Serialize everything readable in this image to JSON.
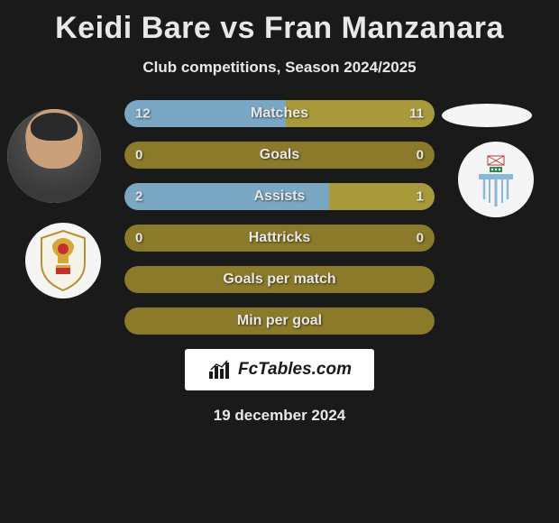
{
  "title": "Keidi Bare vs Fran Manzanara",
  "subtitle": "Club competitions, Season 2024/2025",
  "date": "19 december 2024",
  "fctables_label": "FcTables.com",
  "colors": {
    "background": "#1a1a1a",
    "text": "#e8e8e8",
    "row_bg": "#8a7a2a",
    "fill_blue": "#7aa8c4",
    "fill_olive": "#a89a3a",
    "club_bg": "#f5f5f5"
  },
  "stats": [
    {
      "label": "Matches",
      "left_val": "12",
      "right_val": "11",
      "left_pct": 52,
      "right_pct": 48,
      "left_color": "#7aa8c4",
      "right_color": "#a89a3a",
      "bg_color": "#8a7a2a"
    },
    {
      "label": "Goals",
      "left_val": "0",
      "right_val": "0",
      "left_pct": 0,
      "right_pct": 0,
      "left_color": "#7aa8c4",
      "right_color": "#a89a3a",
      "bg_color": "#8a7a2a"
    },
    {
      "label": "Assists",
      "left_val": "2",
      "right_val": "1",
      "left_pct": 66,
      "right_pct": 34,
      "left_color": "#7aa8c4",
      "right_color": "#a89a3a",
      "bg_color": "#8a7a2a"
    },
    {
      "label": "Hattricks",
      "left_val": "0",
      "right_val": "0",
      "left_pct": 0,
      "right_pct": 0,
      "left_color": "#7aa8c4",
      "right_color": "#a89a3a",
      "bg_color": "#8a7a2a"
    },
    {
      "label": "Goals per match",
      "left_val": "",
      "right_val": "",
      "left_pct": 0,
      "right_pct": 0,
      "left_color": "#7aa8c4",
      "right_color": "#a89a3a",
      "bg_color": "#8a7a2a"
    },
    {
      "label": "Min per goal",
      "left_val": "",
      "right_val": "",
      "left_pct": 0,
      "right_pct": 0,
      "left_color": "#7aa8c4",
      "right_color": "#a89a3a",
      "bg_color": "#8a7a2a"
    }
  ]
}
